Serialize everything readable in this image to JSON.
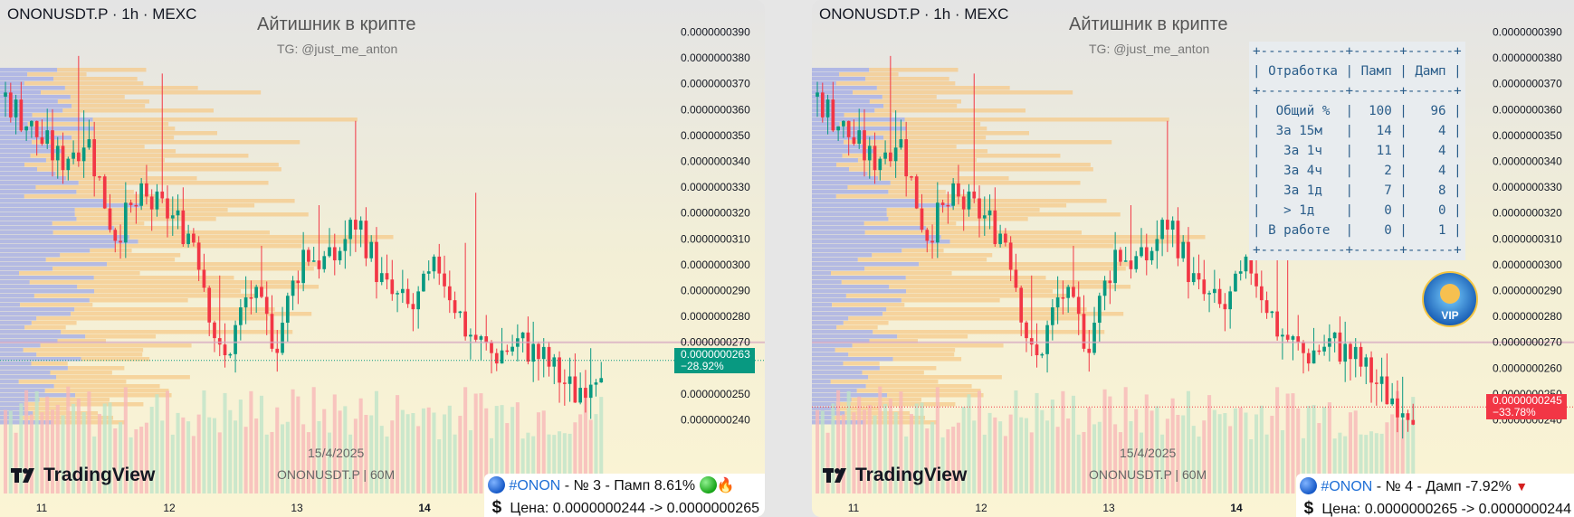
{
  "panels": [
    {
      "symbol_line": "ONONUSDT.P · 1h · MEXC",
      "watermark_title": "Айтишник в крипте",
      "watermark_tg": "TG: @just_me_anton",
      "watermark_date": "15/4/2025",
      "watermark_pair": "ONONUSDT.P | 60M",
      "brand": "TradingView",
      "price_label": "0.0000000263",
      "change_label": "−28.92%",
      "price_tag_color": "#089981",
      "caption_tag": "#ONON",
      "caption_text": " - № 3 - Памп 8.61% ",
      "caption_price": "Цена: 0.0000000244 -> 0.0000000265"
    },
    {
      "symbol_line": "ONONUSDT.P · 1h · MEXC",
      "watermark_title": "Айтишник в крипте",
      "watermark_tg": "TG: @just_me_anton",
      "watermark_date": "15/4/2025",
      "watermark_pair": "ONONUSDT.P | 60M",
      "brand": "TradingView",
      "price_label": "0.0000000245",
      "change_label": "−33.78%",
      "price_tag_color": "#f23645",
      "caption_tag": "#ONON",
      "caption_text": " - № 4 - Дамп -7.92% ",
      "caption_price": "Цена: 0.0000000265 -> 0.0000000244"
    }
  ],
  "stats_table": {
    "border": "+-----------+------+------+",
    "header": [
      "Отработка",
      "Памп",
      "Дамп"
    ],
    "rows": [
      [
        "Общий %",
        "100",
        "96"
      ],
      [
        "За 15м",
        "14",
        "4"
      ],
      [
        "За 1ч",
        "11",
        "4"
      ],
      [
        "За 4ч",
        "2",
        "4"
      ],
      [
        "За 1д",
        "7",
        "8"
      ],
      [
        "> 1д",
        "0",
        "0"
      ],
      [
        "В работе",
        "0",
        "1"
      ]
    ]
  },
  "vip_badge": "VIP",
  "icons": [
    "tradingview-logo-icon",
    "blue-circle-icon",
    "green-circle-icon",
    "fire-icon",
    "red-triangle-down-icon",
    "dollar-icon",
    "vip-badge-icon"
  ],
  "colors": {
    "up": "#089981",
    "down": "#f23645",
    "profile_blue": "#9fa8e6",
    "profile_orange": "#f5c98a",
    "background": "#f7f3dc"
  },
  "chart_data": [
    {
      "type": "candlestick",
      "title": "",
      "timeframe": "1h",
      "exchange": "MEXC",
      "x_tick_labels": [
        "11",
        "12",
        "13",
        "14"
      ],
      "y_tick_labels": [
        "0.0000000390",
        "0.0000000380",
        "0.0000000370",
        "0.0000000360",
        "0.0000000350",
        "0.0000000340",
        "0.0000000330",
        "0.0000000320",
        "0.0000000310",
        "0.0000000300",
        "0.0000000290",
        "0.0000000280",
        "0.0000000270",
        "0.0000000260",
        "0.0000000250",
        "0.0000000240"
      ],
      "ylim": [
        2.36e-08,
        3.94e-08
      ],
      "last_price": 2.63e-08,
      "change_pct": -28.92,
      "grid": false,
      "approx_close_path": [
        3.65e-08,
        3.52e-08,
        3.4e-08,
        3.5e-08,
        3.12e-08,
        3.25e-08,
        3.2e-08,
        3.1e-08,
        2.6e-08,
        2.9e-08,
        2.7e-08,
        3.05e-08,
        3e-08,
        3.18e-08,
        2.9e-08,
        2.82e-08,
        3e-08,
        2.75e-08,
        2.65e-08,
        2.7e-08,
        2.62e-08,
        2.5e-08,
        2.63e-08
      ]
    },
    {
      "type": "candlestick",
      "title": "",
      "timeframe": "1h",
      "exchange": "MEXC",
      "x_tick_labels": [
        "11",
        "12",
        "13",
        "14"
      ],
      "y_tick_labels": [
        "0.0000000390",
        "0.0000000380",
        "0.0000000370",
        "0.0000000360",
        "0.0000000350",
        "0.0000000340",
        "0.0000000330",
        "0.0000000320",
        "0.0000000310",
        "0.0000000300",
        "0.0000000290",
        "0.0000000280",
        "0.0000000270",
        "0.0000000260",
        "0.0000000250",
        "0.0000000240"
      ],
      "ylim": [
        2.36e-08,
        3.94e-08
      ],
      "last_price": 2.45e-08,
      "change_pct": -33.78,
      "grid": false,
      "approx_close_path": [
        3.65e-08,
        3.52e-08,
        3.4e-08,
        3.5e-08,
        3.12e-08,
        3.25e-08,
        3.2e-08,
        3.1e-08,
        2.6e-08,
        2.9e-08,
        2.7e-08,
        3.05e-08,
        3e-08,
        3.18e-08,
        2.9e-08,
        2.82e-08,
        3e-08,
        2.75e-08,
        2.65e-08,
        2.7e-08,
        2.62e-08,
        2.5e-08,
        2.45e-08
      ]
    }
  ]
}
